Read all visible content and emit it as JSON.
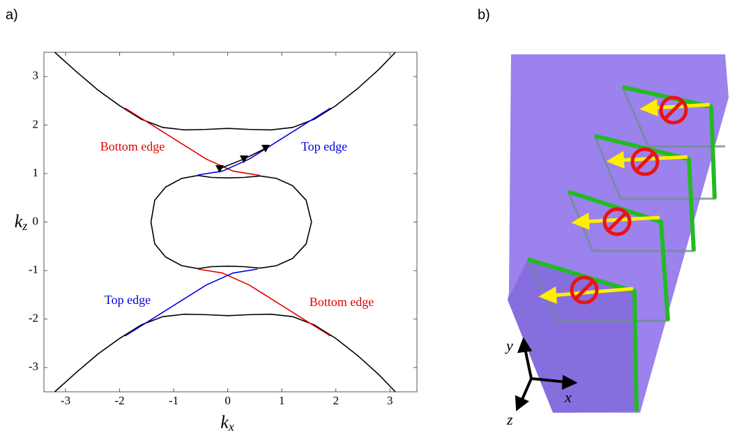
{
  "panel_labels": [
    "a)",
    "b)"
  ],
  "illustration": {
    "axis_labels": [
      "x",
      "y",
      "z"
    ]
  },
  "chart_data": {
    "type": "line",
    "xlabel": "kx",
    "ylabel": "kz",
    "xlim": [
      -3.4,
      3.5
    ],
    "ylim": [
      -3.5,
      3.5
    ],
    "xticks": [
      -3,
      -2,
      -1,
      0,
      1,
      2,
      3
    ],
    "yticks": [
      -3,
      -2,
      -1,
      0,
      1,
      2,
      3
    ],
    "series": [
      {
        "color": "#000000",
        "x": [
          -3.2,
          -2.8,
          -2.4,
          -2.0,
          -1.6,
          -1.2,
          -0.8,
          -0.4,
          0,
          0.4,
          0.8,
          1.2,
          1.6,
          2.0,
          2.4,
          2.8,
          3.1
        ],
        "values": [
          3.5,
          3.1,
          2.72,
          2.4,
          2.12,
          1.95,
          1.9,
          1.91,
          1.93,
          1.91,
          1.9,
          1.95,
          2.12,
          2.4,
          2.75,
          3.15,
          3.5
        ]
      },
      {
        "color": "#000000",
        "x": [
          -3.2,
          -2.8,
          -2.4,
          -2.0,
          -1.6,
          -1.2,
          -0.8,
          -0.4,
          0,
          0.4,
          0.8,
          1.2,
          1.6,
          2.0,
          2.4,
          2.8,
          3.1
        ],
        "values": [
          -3.5,
          -3.1,
          -2.72,
          -2.4,
          -2.12,
          -1.95,
          -1.9,
          -1.91,
          -1.93,
          -1.91,
          -1.9,
          -1.95,
          -2.12,
          -2.4,
          -2.75,
          -3.15,
          -3.5
        ]
      },
      {
        "color": "#000000",
        "closed": true,
        "x": [
          -0.55,
          -0.3,
          0,
          0.3,
          0.6,
          0.9,
          1.2,
          1.45,
          1.55,
          1.45,
          1.2,
          0.9,
          0.6,
          0.3,
          0,
          -0.3,
          -0.55,
          -0.85,
          -1.15,
          -1.35,
          -1.42,
          -1.35,
          -1.15,
          -0.85
        ],
        "values": [
          0.96,
          0.92,
          0.91,
          0.92,
          0.95,
          0.9,
          0.75,
          0.45,
          0,
          -0.45,
          -0.75,
          -0.9,
          -0.95,
          -0.92,
          -0.91,
          -0.92,
          -0.96,
          -0.9,
          -0.72,
          -0.45,
          0,
          0.45,
          0.72,
          0.9
        ]
      },
      {
        "color": "#e00000",
        "x": [
          -1.9,
          -1.4,
          -0.9,
          -0.4,
          0.1,
          0.6
        ],
        "values": [
          2.35,
          2.0,
          1.65,
          1.3,
          1.05,
          0.96
        ]
      },
      {
        "color": "#0000e0",
        "x": [
          -0.55,
          -0.1,
          0.4,
          0.9,
          1.4,
          1.9
        ],
        "values": [
          0.97,
          1.05,
          1.3,
          1.65,
          2.0,
          2.35
        ]
      },
      {
        "color": "#e00000",
        "x": [
          -0.55,
          -0.1,
          0.4,
          0.9,
          1.4,
          1.9
        ],
        "values": [
          -0.97,
          -1.05,
          -1.3,
          -1.65,
          -2.0,
          -2.35
        ]
      },
      {
        "color": "#0000e0",
        "x": [
          -1.9,
          -1.4,
          -0.9,
          -0.4,
          0.1,
          0.55
        ],
        "values": [
          -2.35,
          -2.0,
          -1.65,
          -1.3,
          -1.05,
          -0.97
        ]
      },
      {
        "color": "#000000",
        "markers": true,
        "x": [
          -0.15,
          0.3,
          0.7
        ],
        "values": [
          1.1,
          1.3,
          1.52
        ]
      }
    ],
    "annotations": [
      {
        "text": "Bottom edge",
        "color": "#e00000"
      },
      {
        "text": "Top edge",
        "color": "#0000e0"
      },
      {
        "text": "Top edge",
        "color": "#0000e0"
      },
      {
        "text": "Bottom edge",
        "color": "#e00000"
      }
    ]
  }
}
